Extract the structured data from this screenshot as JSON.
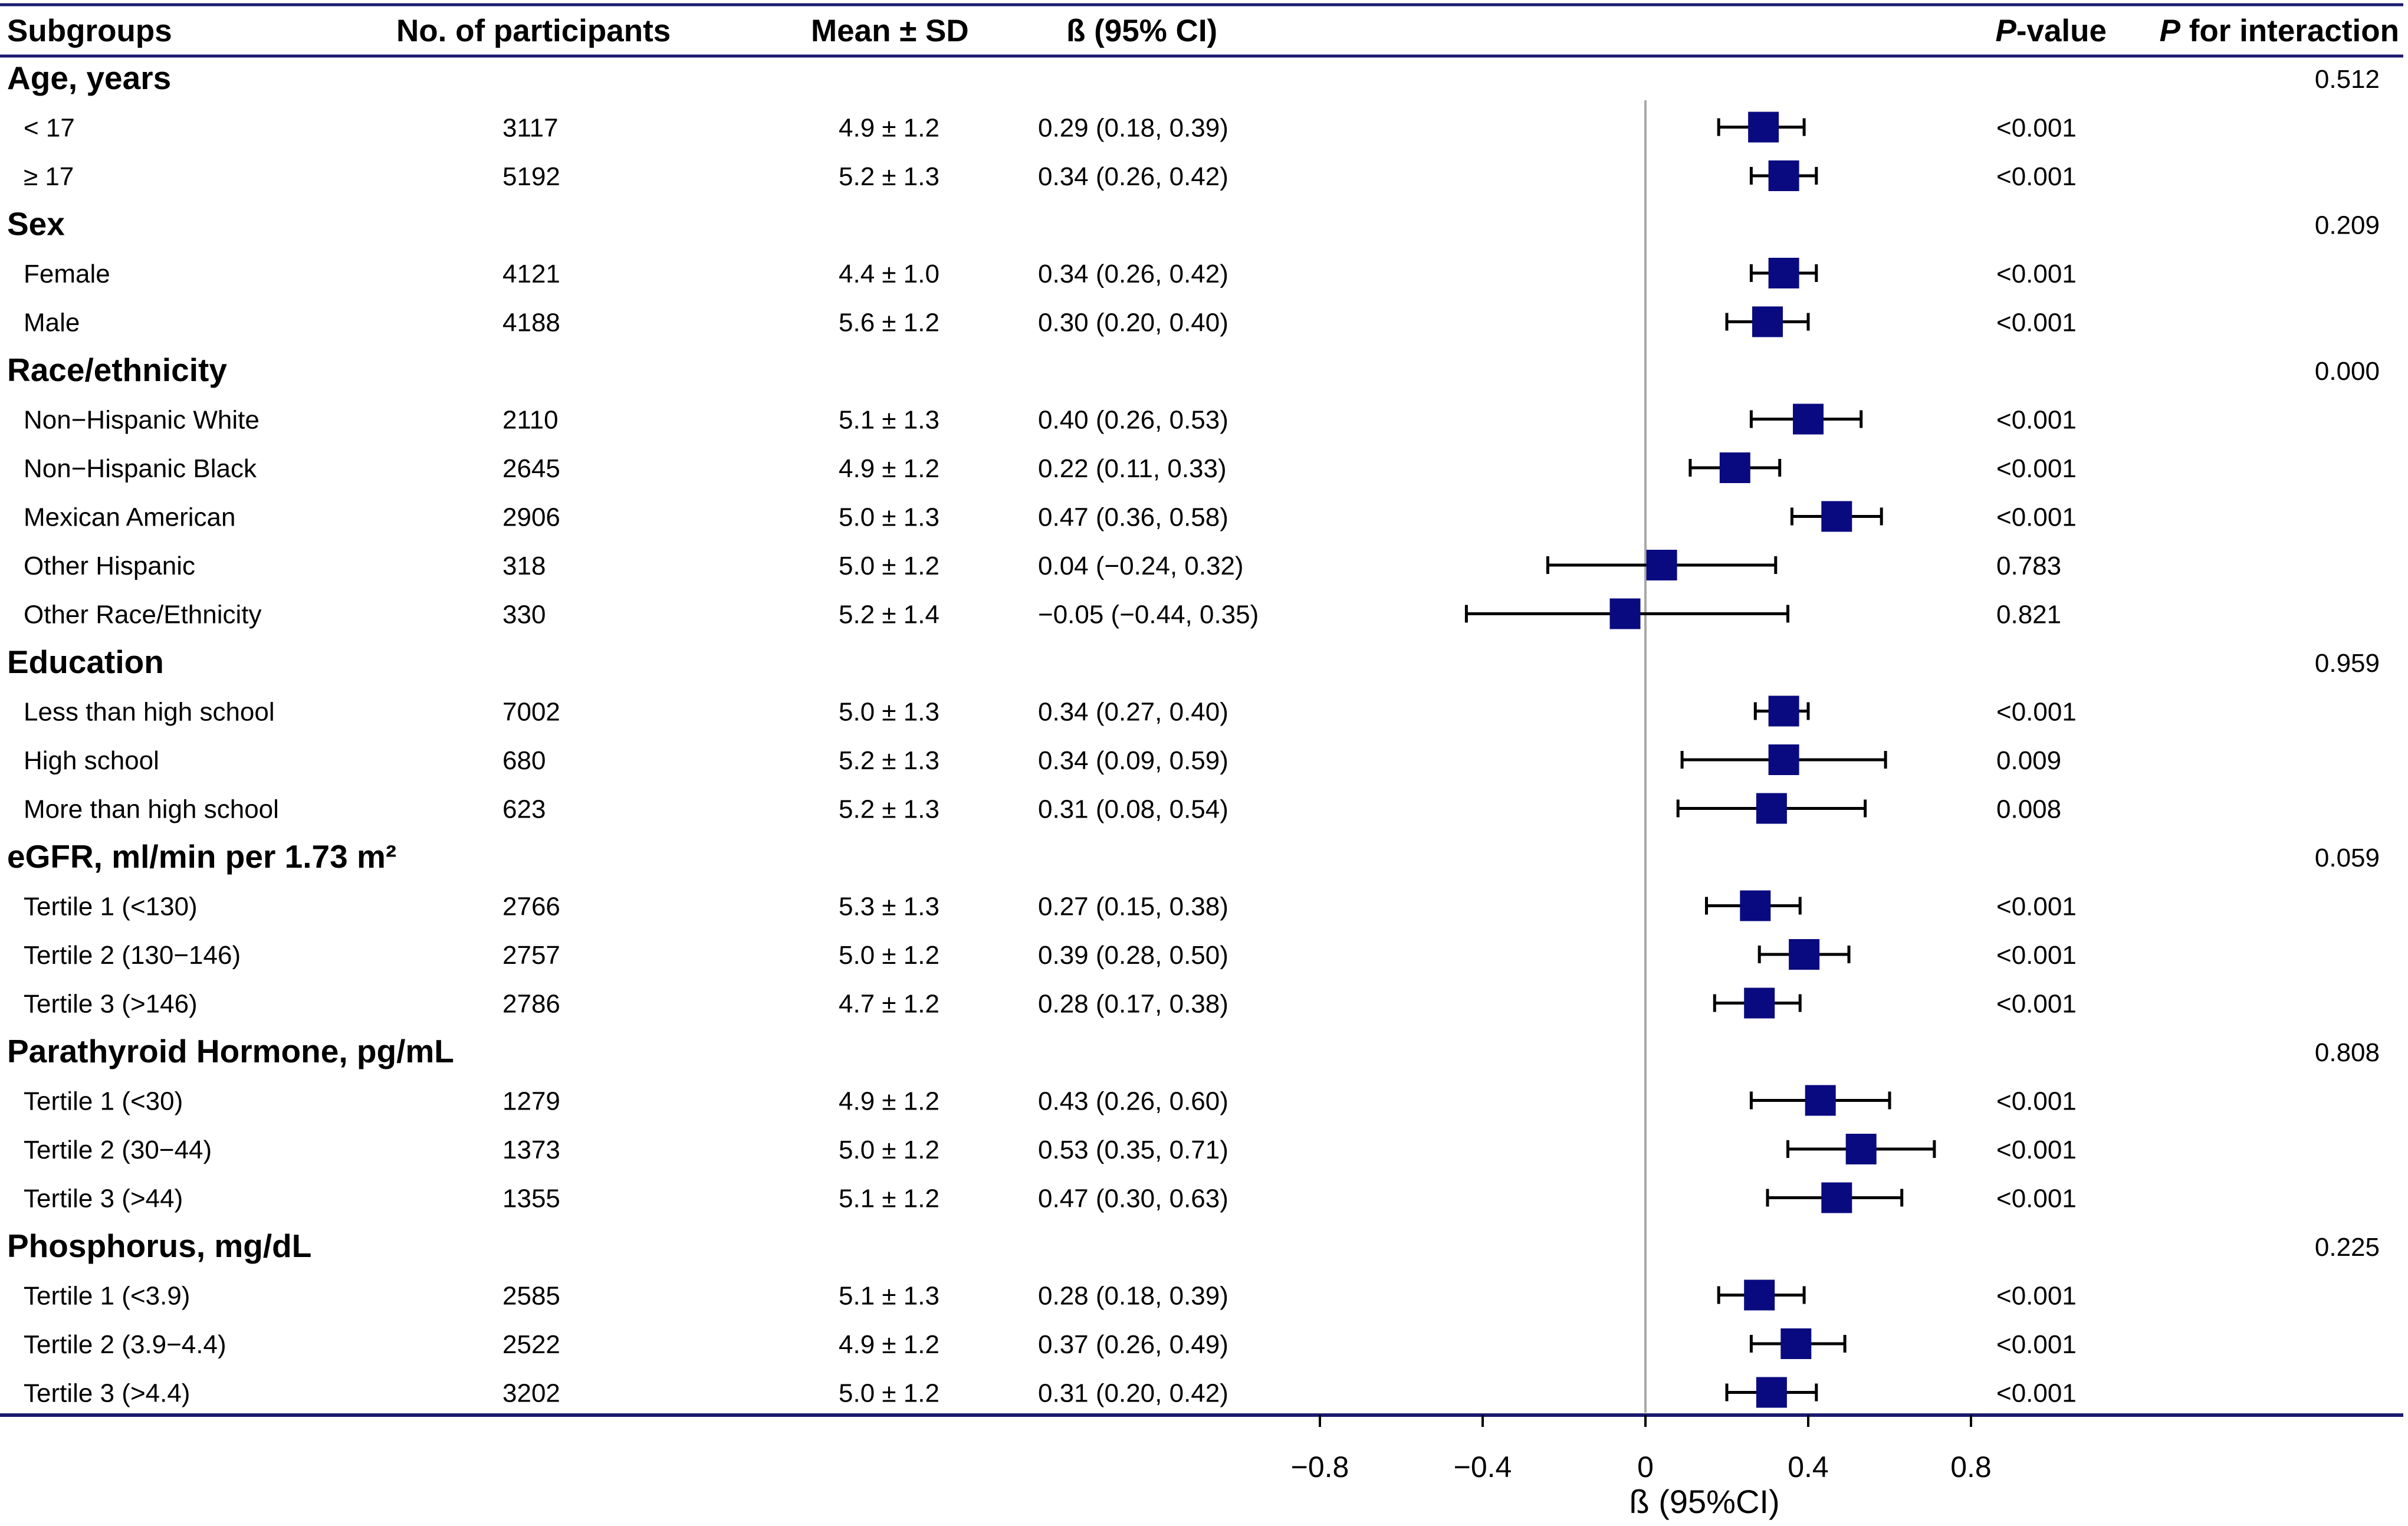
{
  "headers": {
    "subgroups": "Subgroups",
    "participants": "No. of participants",
    "mean_sd": "Mean ± SD",
    "beta_ci": "ß (95% CI)",
    "p_value_italic": "P",
    "p_value_rest": "-value",
    "p_interaction_italic": "P",
    "p_interaction_rest": " for interaction"
  },
  "chart_data": {
    "type": "forest",
    "xlabel": "ß (95%CI)",
    "xlim": [
      -0.85,
      0.9
    ],
    "xticks": [
      -0.8,
      -0.4,
      0,
      0.4,
      0.8
    ],
    "xtick_labels": [
      "−0.8",
      "−0.4",
      "0",
      "0.4",
      "0.8"
    ],
    "reference_line": 0,
    "marker_color": "#0a0a80",
    "rule_color": "#1a1a6e",
    "rows": [
      {
        "kind": "group",
        "label": "Age, years",
        "p_interaction": "0.512"
      },
      {
        "kind": "item",
        "label": "< 17",
        "n": "3117",
        "mean_sd": "4.9 ± 1.2",
        "ci_text": "0.29 (0.18, 0.39)",
        "beta": 0.29,
        "lo": 0.18,
        "hi": 0.39,
        "p": "<0.001"
      },
      {
        "kind": "item",
        "label": "≥ 17",
        "n": "5192",
        "mean_sd": "5.2 ± 1.3",
        "ci_text": "0.34 (0.26, 0.42)",
        "beta": 0.34,
        "lo": 0.26,
        "hi": 0.42,
        "p": "<0.001"
      },
      {
        "kind": "group",
        "label": "Sex",
        "p_interaction": "0.209"
      },
      {
        "kind": "item",
        "label": "Female",
        "n": "4121",
        "mean_sd": "4.4 ± 1.0",
        "ci_text": "0.34 (0.26, 0.42)",
        "beta": 0.34,
        "lo": 0.26,
        "hi": 0.42,
        "p": "<0.001"
      },
      {
        "kind": "item",
        "label": "Male",
        "n": "4188",
        "mean_sd": "5.6 ± 1.2",
        "ci_text": "0.30 (0.20, 0.40)",
        "beta": 0.3,
        "lo": 0.2,
        "hi": 0.4,
        "p": "<0.001"
      },
      {
        "kind": "group",
        "label": "Race/ethnicity",
        "p_interaction": "0.000"
      },
      {
        "kind": "item",
        "label": "Non−Hispanic White",
        "n": "2110",
        "mean_sd": "5.1 ± 1.3",
        "ci_text": "0.40 (0.26, 0.53)",
        "beta": 0.4,
        "lo": 0.26,
        "hi": 0.53,
        "p": "<0.001"
      },
      {
        "kind": "item",
        "label": "Non−Hispanic Black",
        "n": "2645",
        "mean_sd": "4.9 ± 1.2",
        "ci_text": "0.22 (0.11, 0.33)",
        "beta": 0.22,
        "lo": 0.11,
        "hi": 0.33,
        "p": "<0.001"
      },
      {
        "kind": "item",
        "label": "Mexican American",
        "n": "2906",
        "mean_sd": "5.0 ± 1.3",
        "ci_text": "0.47 (0.36, 0.58)",
        "beta": 0.47,
        "lo": 0.36,
        "hi": 0.58,
        "p": "<0.001"
      },
      {
        "kind": "item",
        "label": "Other Hispanic",
        "n": "318",
        "mean_sd": "5.0 ± 1.2",
        "ci_text": "0.04 (−0.24, 0.32)",
        "beta": 0.04,
        "lo": -0.24,
        "hi": 0.32,
        "p": "0.783"
      },
      {
        "kind": "item",
        "label": "Other Race/Ethnicity",
        "n": "330",
        "mean_sd": "5.2 ± 1.4",
        "ci_text": "−0.05 (−0.44, 0.35)",
        "beta": -0.05,
        "lo": -0.44,
        "hi": 0.35,
        "p": "0.821"
      },
      {
        "kind": "group",
        "label": "Education",
        "p_interaction": "0.959"
      },
      {
        "kind": "item",
        "label": "Less than high school",
        "n": "7002",
        "mean_sd": "5.0 ± 1.3",
        "ci_text": "0.34 (0.27, 0.40)",
        "beta": 0.34,
        "lo": 0.27,
        "hi": 0.4,
        "p": "<0.001"
      },
      {
        "kind": "item",
        "label": "High school",
        "n": "680",
        "mean_sd": "5.2 ± 1.3",
        "ci_text": "0.34 (0.09, 0.59)",
        "beta": 0.34,
        "lo": 0.09,
        "hi": 0.59,
        "p": "0.009"
      },
      {
        "kind": "item",
        "label": "More than high school",
        "n": "623",
        "mean_sd": "5.2 ± 1.3",
        "ci_text": "0.31 (0.08, 0.54)",
        "beta": 0.31,
        "lo": 0.08,
        "hi": 0.54,
        "p": "0.008"
      },
      {
        "kind": "group",
        "label": "eGFR, ml/min per 1.73 m²",
        "p_interaction": "0.059"
      },
      {
        "kind": "item",
        "label": "Tertile 1 (<130)",
        "n": "2766",
        "mean_sd": "5.3 ± 1.3",
        "ci_text": "0.27 (0.15, 0.38)",
        "beta": 0.27,
        "lo": 0.15,
        "hi": 0.38,
        "p": "<0.001"
      },
      {
        "kind": "item",
        "label": "Tertile 2 (130−146)",
        "n": "2757",
        "mean_sd": "5.0 ± 1.2",
        "ci_text": "0.39 (0.28, 0.50)",
        "beta": 0.39,
        "lo": 0.28,
        "hi": 0.5,
        "p": "<0.001"
      },
      {
        "kind": "item",
        "label": "Tertile 3 (>146)",
        "n": "2786",
        "mean_sd": "4.7 ± 1.2",
        "ci_text": "0.28 (0.17, 0.38)",
        "beta": 0.28,
        "lo": 0.17,
        "hi": 0.38,
        "p": "<0.001"
      },
      {
        "kind": "group",
        "label": "Parathyroid Hormone, pg/mL",
        "p_interaction": "0.808"
      },
      {
        "kind": "item",
        "label": "Tertile 1 (<30)",
        "n": "1279",
        "mean_sd": "4.9 ± 1.2",
        "ci_text": "0.43 (0.26, 0.60)",
        "beta": 0.43,
        "lo": 0.26,
        "hi": 0.6,
        "p": "<0.001"
      },
      {
        "kind": "item",
        "label": "Tertile 2 (30−44)",
        "n": "1373",
        "mean_sd": "5.0 ± 1.2",
        "ci_text": "0.53 (0.35, 0.71)",
        "beta": 0.53,
        "lo": 0.35,
        "hi": 0.71,
        "p": "<0.001"
      },
      {
        "kind": "item",
        "label": "Tertile 3 (>44)",
        "n": "1355",
        "mean_sd": "5.1 ± 1.2",
        "ci_text": "0.47 (0.30, 0.63)",
        "beta": 0.47,
        "lo": 0.3,
        "hi": 0.63,
        "p": "<0.001"
      },
      {
        "kind": "group",
        "label": "Phosphorus, mg/dL",
        "p_interaction": "0.225"
      },
      {
        "kind": "item",
        "label": "Tertile 1 (<3.9)",
        "n": "2585",
        "mean_sd": "5.1 ± 1.3",
        "ci_text": "0.28 (0.18, 0.39)",
        "beta": 0.28,
        "lo": 0.18,
        "hi": 0.39,
        "p": "<0.001"
      },
      {
        "kind": "item",
        "label": "Tertile 2 (3.9−4.4)",
        "n": "2522",
        "mean_sd": "4.9 ± 1.2",
        "ci_text": "0.37 (0.26, 0.49)",
        "beta": 0.37,
        "lo": 0.26,
        "hi": 0.49,
        "p": "<0.001"
      },
      {
        "kind": "item",
        "label": "Tertile 3 (>4.4)",
        "n": "3202",
        "mean_sd": "5.0 ± 1.2",
        "ci_text": "0.31 (0.20, 0.42)",
        "beta": 0.31,
        "lo": 0.2,
        "hi": 0.42,
        "p": "<0.001"
      }
    ]
  }
}
